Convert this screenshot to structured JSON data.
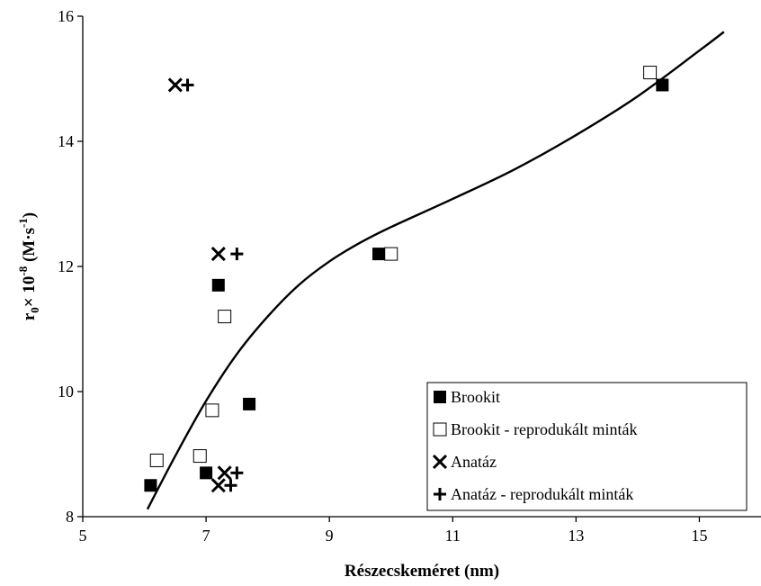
{
  "chart_data": {
    "type": "scatter",
    "xlabel": "Részecskeméret (nm)",
    "ylabel": {
      "base": "r",
      "sub": "0",
      "mid": "× 10",
      "sup": "-8",
      "unit": " (M·s",
      "unit_sup": "-1",
      "close": ")"
    },
    "xlim": [
      5,
      16
    ],
    "ylim": [
      8,
      16
    ],
    "xticks": [
      5,
      7,
      9,
      11,
      13,
      15
    ],
    "yticks": [
      8,
      10,
      12,
      14,
      16
    ],
    "grid": false,
    "legend_position": "bottom-right",
    "series": [
      {
        "name": "Brookit",
        "marker": "filled-square",
        "points": [
          [
            6.1,
            8.5
          ],
          [
            7.0,
            8.7
          ],
          [
            7.2,
            11.7
          ],
          [
            7.7,
            9.8
          ],
          [
            9.8,
            12.2
          ],
          [
            14.4,
            14.9
          ]
        ]
      },
      {
        "name": "Brookit - reprodukált minták",
        "marker": "open-square",
        "points": [
          [
            6.2,
            8.9
          ],
          [
            6.9,
            8.97
          ],
          [
            7.1,
            9.7
          ],
          [
            7.3,
            11.2
          ],
          [
            10.0,
            12.2
          ],
          [
            14.2,
            15.1
          ]
        ]
      },
      {
        "name": "Anatáz",
        "marker": "x",
        "points": [
          [
            6.5,
            14.9
          ],
          [
            7.2,
            12.2
          ],
          [
            7.2,
            8.5
          ],
          [
            7.3,
            8.7
          ]
        ]
      },
      {
        "name": "Anatáz - reprodukált minták",
        "marker": "plus",
        "points": [
          [
            6.7,
            14.9
          ],
          [
            7.5,
            12.2
          ],
          [
            7.4,
            8.5
          ],
          [
            7.5,
            8.7
          ]
        ]
      }
    ],
    "trendline": {
      "type": "logarithmic",
      "x": [
        6.05,
        6.5,
        7.0,
        7.5,
        8.0,
        8.5,
        9.0,
        9.5,
        10.0,
        11.0,
        12.0,
        13.0,
        14.0,
        15.0,
        15.4
      ],
      "y": [
        8.12,
        8.97,
        9.85,
        10.6,
        11.2,
        11.7,
        12.08,
        12.38,
        12.63,
        13.08,
        13.55,
        14.1,
        14.72,
        15.45,
        15.75
      ]
    }
  }
}
